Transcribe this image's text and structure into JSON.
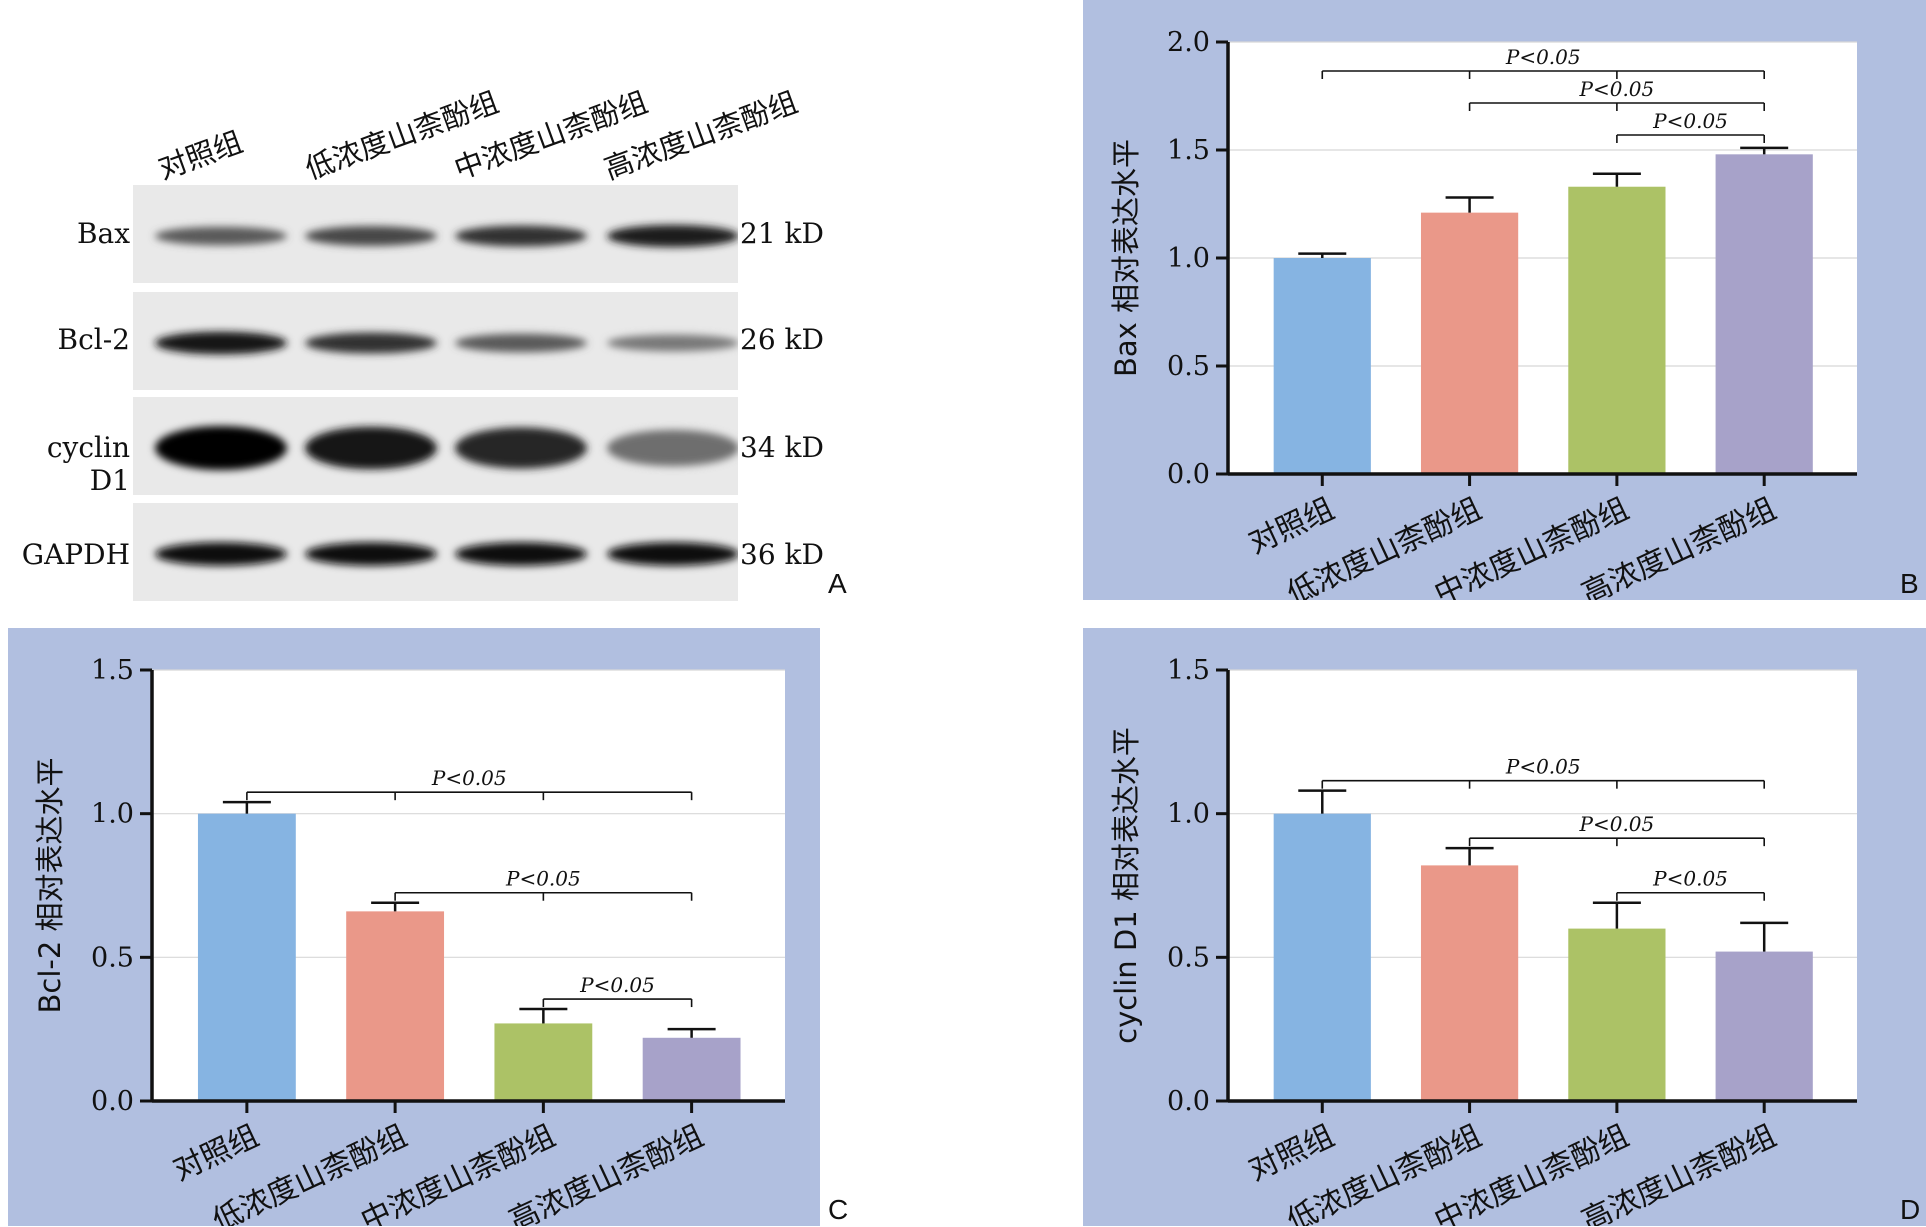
{
  "blot": {
    "lanes": [
      "对照组",
      "低浓度山柰酚组",
      "中浓度山柰酚组",
      "高浓度山柰酚组"
    ],
    "bands": [
      {
        "protein": "Bax",
        "size": "21 kD",
        "intensity": [
          0.55,
          0.65,
          0.75,
          0.85
        ]
      },
      {
        "protein": "Bcl-2",
        "size": "26 kD",
        "intensity": [
          0.9,
          0.75,
          0.55,
          0.4
        ]
      },
      {
        "protein": "cyclin D1",
        "size": "34 kD",
        "intensity": [
          1.0,
          0.9,
          0.8,
          0.45
        ]
      },
      {
        "protein": "GAPDH",
        "size": "36 kD",
        "intensity": [
          0.95,
          0.95,
          0.95,
          0.95
        ]
      }
    ],
    "panel_label": "A"
  },
  "chart_data": [
    {
      "type": "bar",
      "panel_label": "B",
      "categories": [
        "对照组",
        "低浓度山柰酚组",
        "中浓度山柰酚组",
        "高浓度山柰酚组"
      ],
      "values": [
        1.0,
        1.21,
        1.33,
        1.48
      ],
      "errors": [
        0.02,
        0.07,
        0.06,
        0.03
      ],
      "colors": [
        "#86b4e2",
        "#ea9889",
        "#acc266",
        "#a7a2c9"
      ],
      "ylabel": "Bax 相对表达水平",
      "ylim": [
        0,
        2.0
      ],
      "yticks": [
        0,
        0.5,
        1.0,
        1.5,
        2.0
      ],
      "ytick_labels": [
        "0.0",
        "0.5",
        "1.0",
        "1.5",
        "2.0"
      ],
      "grid": true,
      "significance": [
        {
          "from": 0,
          "to": 3,
          "text": "P<0.05",
          "mids": [
            1,
            2
          ]
        },
        {
          "from": 1,
          "to": 3,
          "text": "P<0.05",
          "mids": [
            2
          ]
        },
        {
          "from": 2,
          "to": 3,
          "text": "P<0.05",
          "mids": []
        }
      ]
    },
    {
      "type": "bar",
      "panel_label": "C",
      "categories": [
        "对照组",
        "低浓度山柰酚组",
        "中浓度山柰酚组",
        "高浓度山柰酚组"
      ],
      "values": [
        1.0,
        0.66,
        0.27,
        0.22
      ],
      "errors": [
        0.04,
        0.03,
        0.05,
        0.03
      ],
      "colors": [
        "#86b4e2",
        "#ea9889",
        "#acc266",
        "#a7a2c9"
      ],
      "ylabel": "Bcl-2 相对表达水平",
      "ylim": [
        0,
        1.5
      ],
      "yticks": [
        0,
        0.5,
        1.0,
        1.5
      ],
      "ytick_labels": [
        "0.0",
        "0.5",
        "1.0",
        "1.5"
      ],
      "grid": true,
      "significance": [
        {
          "from": 0,
          "to": 3,
          "text": "P<0.05",
          "mids": [
            1,
            2
          ]
        },
        {
          "from": 1,
          "to": 3,
          "text": "P<0.05",
          "mids": [
            2
          ]
        },
        {
          "from": 2,
          "to": 3,
          "text": "P<0.05",
          "mids": []
        }
      ]
    },
    {
      "type": "bar",
      "panel_label": "D",
      "categories": [
        "对照组",
        "低浓度山柰酚组",
        "中浓度山柰酚组",
        "高浓度山柰酚组"
      ],
      "values": [
        1.0,
        0.82,
        0.6,
        0.52
      ],
      "errors": [
        0.08,
        0.06,
        0.09,
        0.1
      ],
      "colors": [
        "#86b4e2",
        "#ea9889",
        "#acc266",
        "#a7a2c9"
      ],
      "ylabel": "cyclin D1 相对表达水平",
      "ylim": [
        0,
        1.5
      ],
      "yticks": [
        0,
        0.5,
        1.0,
        1.5
      ],
      "ytick_labels": [
        "0.0",
        "0.5",
        "1.0",
        "1.5"
      ],
      "grid": true,
      "significance": [
        {
          "from": 0,
          "to": 3,
          "text": "P<0.05",
          "mids": [
            1,
            2
          ]
        },
        {
          "from": 1,
          "to": 3,
          "text": "P<0.05",
          "mids": [
            2
          ]
        },
        {
          "from": 2,
          "to": 3,
          "text": "P<0.05",
          "mids": []
        }
      ]
    }
  ]
}
